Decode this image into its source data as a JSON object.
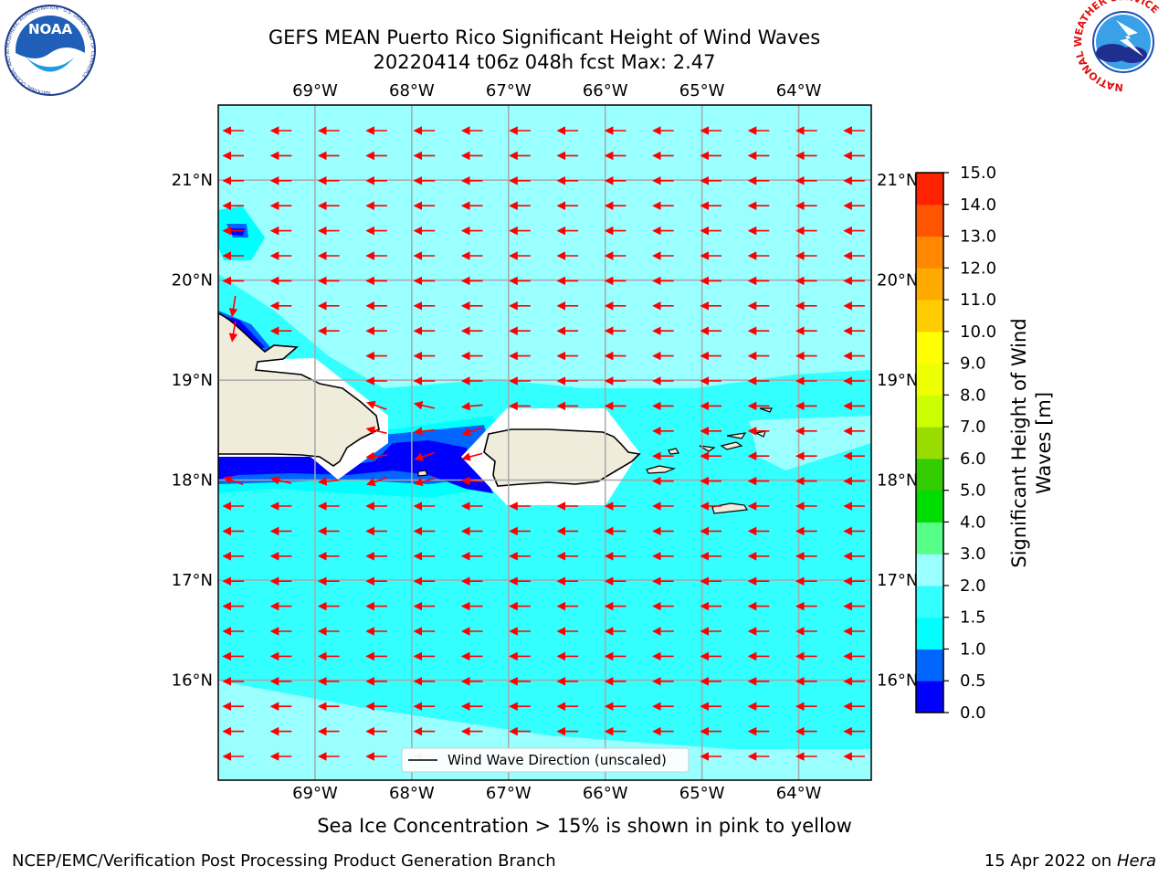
{
  "title": {
    "line1": "GEFS MEAN Puerto Rico Significant Height of Wind Waves",
    "line2": "20220414 t06z 048h fcst   Max: 2.47"
  },
  "logos": {
    "left": "NOAA",
    "left_ring": "NATIONAL OCEANIC AND ATMOSPHERIC ADMINISTRATION · U.S. DEPARTMENT OF COMMERCE",
    "right_ring": "NATIONAL WEATHER SERVICE"
  },
  "map": {
    "lon_labels": [
      "69°W",
      "68°W",
      "67°W",
      "66°W",
      "65°W",
      "64°W"
    ],
    "lon_values": [
      -69,
      -68,
      -67,
      -66,
      -65,
      -64
    ],
    "lat_labels": [
      "21°N",
      "20°N",
      "19°N",
      "18°N",
      "17°N",
      "16°N"
    ],
    "lat_values": [
      21,
      20,
      19,
      18,
      17,
      16
    ],
    "lon_range": [
      -70,
      -63.25
    ],
    "lat_range": [
      15,
      21.75
    ],
    "ocean_base_color": "#33ffff",
    "arrow_color": "#ff0000",
    "legend_label": "Wind Wave Direction (unscaled)"
  },
  "colorbar": {
    "label_line1": "Significant Height of Wind",
    "label_line2": "Waves [m]",
    "ticks": [
      "0.0",
      "0.5",
      "1.0",
      "1.5",
      "2.0",
      "3.0",
      "4.0",
      "5.0",
      "6.0",
      "7.0",
      "8.0",
      "9.0",
      "10.0",
      "11.0",
      "12.0",
      "13.0",
      "14.0",
      "15.0"
    ],
    "colors": [
      "#0000ff",
      "#0066ff",
      "#00ffff",
      "#33ffff",
      "#99ffff",
      "#55ff88",
      "#00dd00",
      "#33cc00",
      "#99dd00",
      "#ccff00",
      "#eeff00",
      "#ffff00",
      "#ffcc00",
      "#ffaa00",
      "#ff8800",
      "#ff5500",
      "#ff2200",
      "#ff0000"
    ]
  },
  "caption": "Sea Ice Concentration > 15% is shown in pink to yellow",
  "footer": {
    "left": "NCEP/EMC/Verification Post Processing Product Generation Branch",
    "right_prefix": "15 Apr 2022 on ",
    "right_host": "Hera"
  }
}
